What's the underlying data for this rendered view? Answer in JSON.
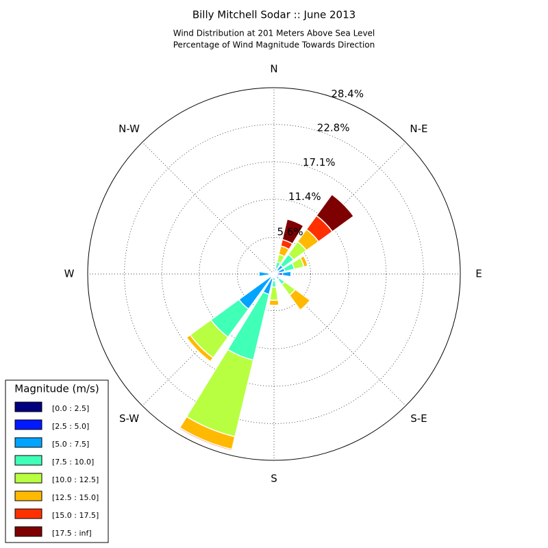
{
  "chart_data": {
    "type": "windrose",
    "title": "Billy Mitchell Sodar :: June 2013",
    "subtitle_line1": "Wind Distribution at 201 Meters Above Sea Level",
    "subtitle_line2": "Percentage of Wind Magnitude Towards Direction",
    "legend_title": "Magnitude (m/s)",
    "directions": [
      0,
      22.5,
      45,
      67.5,
      90,
      112.5,
      135,
      157.5,
      180,
      202.5,
      225,
      247.5,
      270,
      292.5,
      315,
      337.5
    ],
    "rlim": [
      0,
      28.4
    ],
    "rticks": [
      {
        "value": 5.6,
        "label": "5.6%"
      },
      {
        "value": 11.4,
        "label": "11.4%"
      },
      {
        "value": 17.1,
        "label": "17.1%"
      },
      {
        "value": 22.8,
        "label": "22.8%"
      },
      {
        "value": 28.4,
        "label": "28.4%"
      }
    ],
    "xticks": [
      {
        "value": 0,
        "label": "N"
      },
      {
        "value": 45,
        "label": "N-E"
      },
      {
        "value": 90,
        "label": "E"
      },
      {
        "value": 135,
        "label": "S-E"
      },
      {
        "value": 180,
        "label": "S"
      },
      {
        "value": 225,
        "label": "S-W"
      },
      {
        "value": 270,
        "label": "W"
      },
      {
        "value": 315,
        "label": "N-W"
      }
    ],
    "series": [
      {
        "name": "[0.0 : 2.5]",
        "color": "#00007f",
        "values": [
          0,
          0.1,
          0.2,
          0.2,
          0.3,
          0.2,
          0.1,
          0,
          0.1,
          0.2,
          0.2,
          0,
          0.2,
          0,
          0,
          0
        ]
      },
      {
        "name": "[2.5 : 5.0]",
        "color": "#0019ff",
        "values": [
          0,
          0.3,
          0.5,
          0.5,
          1.0,
          0.3,
          0.3,
          0,
          0.3,
          0.5,
          0.4,
          0,
          0.5,
          0,
          0,
          0
        ]
      },
      {
        "name": "[5.0 : 7.5]",
        "color": "#00a4ff",
        "values": [
          0,
          0.5,
          1.0,
          1.0,
          1.3,
          0.3,
          0.6,
          0,
          0.6,
          2.5,
          6.0,
          0,
          1.6,
          0,
          0,
          0
        ]
      },
      {
        "name": "[7.5 : 10.0]",
        "color": "#40ffb7",
        "values": [
          0,
          1.0,
          2.0,
          1.5,
          0,
          0,
          1.0,
          0,
          1.0,
          10.3,
          5.3,
          0,
          0,
          0,
          0,
          0
        ]
      },
      {
        "name": "[10.0 : 12.5]",
        "color": "#b7ff40",
        "values": [
          0,
          1.2,
          2.4,
          1.5,
          0,
          0,
          2.0,
          0,
          2.0,
          12.0,
          3.9,
          0,
          0,
          0,
          0,
          0
        ]
      },
      {
        "name": "[12.5 : 15.0]",
        "color": "#ffb900",
        "values": [
          0,
          1.3,
          2.3,
          0.6,
          0,
          0,
          2.8,
          0,
          0.8,
          2.0,
          0.7,
          0,
          0,
          0,
          0,
          0
        ]
      },
      {
        "name": "[15.0 : 17.5]",
        "color": "#ff3000",
        "values": [
          0,
          1.0,
          2.6,
          0,
          0,
          0,
          0,
          0,
          0,
          0.2,
          0,
          0,
          0,
          0,
          0,
          0
        ]
      },
      {
        "name": "[17.5 : inf]",
        "color": "#7f0000",
        "values": [
          0,
          3.2,
          4.0,
          0,
          0,
          0,
          0,
          0,
          0,
          0,
          0,
          0,
          0,
          0,
          0,
          0
        ]
      }
    ]
  }
}
